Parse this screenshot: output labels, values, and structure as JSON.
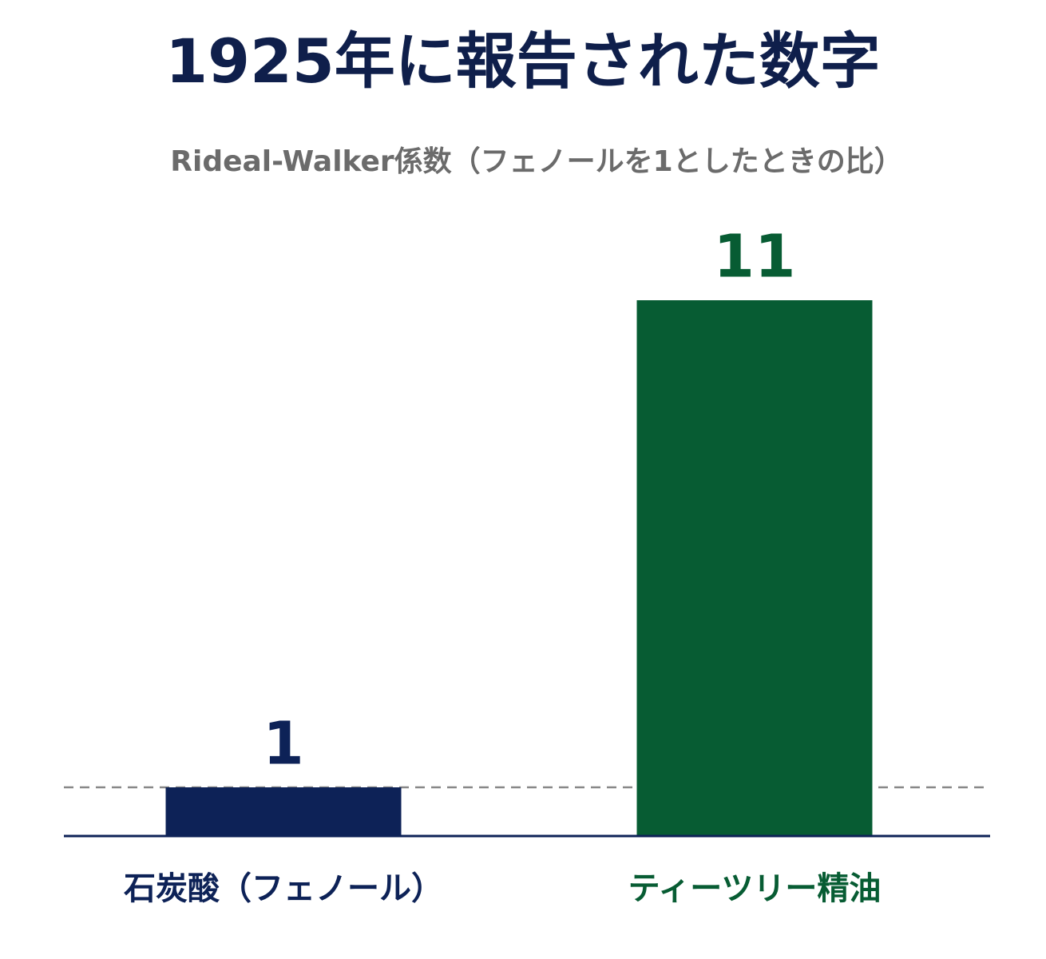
{
  "chart_data": {
    "type": "bar",
    "title": "1925年に報告された数字",
    "subtitle": "Rideal-Walker係数（フェノールを1としたときの比）",
    "categories": [
      "石炭酸（フェノール）",
      "ティーツリー精油"
    ],
    "values": [
      1,
      11
    ],
    "colors": [
      "#0d2257",
      "#075c33"
    ],
    "ylim": [
      0,
      12
    ],
    "reference_line": 1,
    "axis_color": "#0d2257",
    "grid": false
  }
}
